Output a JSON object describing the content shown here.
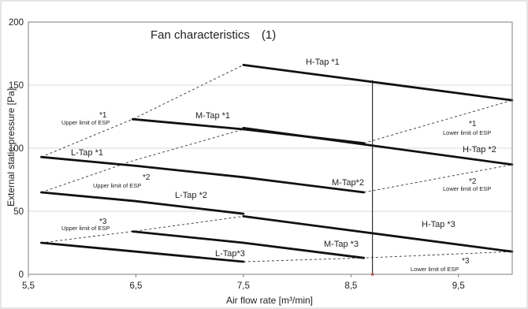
{
  "chart_data": {
    "type": "line",
    "title": "Fan characteristics　(1)",
    "xlabel": "Air flow rate [m³/min]",
    "ylabel": "External static pressure [Pa]",
    "xlim": [
      5.5,
      10.0
    ],
    "ylim": [
      0,
      200
    ],
    "x_ticks": [
      "5,5",
      "6,5",
      "7,5",
      "8,5",
      "9,5"
    ],
    "x_tick_values": [
      5.5,
      6.5,
      7.5,
      8.5,
      9.5
    ],
    "y_ticks": [
      "0",
      "50",
      "100",
      "150",
      "200"
    ],
    "y_tick_values": [
      0,
      50,
      100,
      150,
      200
    ],
    "grid": "horizontal",
    "series": [
      {
        "name": "H-Tap *1",
        "x": [
          7.5,
          10.0
        ],
        "y": [
          166,
          138
        ]
      },
      {
        "name": "M-Tap *1",
        "x": [
          6.47,
          7.5,
          8.62
        ],
        "y": [
          123,
          115,
          104
        ]
      },
      {
        "name": "L-Tap *1",
        "x": [
          5.62,
          6.5,
          7.5
        ],
        "y": [
          93,
          86,
          77
        ]
      },
      {
        "name": "H-Tap *2",
        "x": [
          7.5,
          10.0
        ],
        "y": [
          116,
          87
        ]
      },
      {
        "name": "M-Tap*2",
        "x": [
          7.5,
          8.62
        ],
        "y": [
          77,
          65
        ]
      },
      {
        "name": "L-Tap *2",
        "x": [
          5.62,
          6.5,
          7.5
        ],
        "y": [
          65,
          58,
          48
        ]
      },
      {
        "name": "H-Tap *3",
        "x": [
          7.5,
          10.0
        ],
        "y": [
          46,
          18
        ]
      },
      {
        "name": "M-Tap *3",
        "x": [
          6.47,
          7.5,
          8.62
        ],
        "y": [
          34,
          25,
          13
        ]
      },
      {
        "name": "L-Tap*3",
        "x": [
          5.62,
          6.5,
          7.5
        ],
        "y": [
          25,
          18,
          10
        ]
      }
    ],
    "esp_limits": [
      {
        "x": [
          5.62,
          6.47,
          7.5
        ],
        "y": [
          93,
          123,
          166
        ]
      },
      {
        "x": [
          8.62,
          10.0
        ],
        "y": [
          104,
          138
        ]
      },
      {
        "x": [
          5.62,
          6.47,
          7.5
        ],
        "y": [
          65,
          90,
          115
        ]
      },
      {
        "x": [
          8.62,
          10.0
        ],
        "y": [
          65,
          87
        ]
      },
      {
        "x": [
          5.62,
          6.47,
          7.5
        ],
        "y": [
          25,
          34,
          46
        ]
      },
      {
        "x": [
          7.5,
          8.62,
          10.0
        ],
        "y": [
          10,
          13,
          18
        ]
      }
    ],
    "vertical_marker": {
      "x": 8.7,
      "y": [
        0,
        154
      ]
    },
    "annotations": [
      {
        "mark": "*1",
        "text": "Upper limit of ESP",
        "x": 6.0,
        "y": 122
      },
      {
        "mark": "*1",
        "text": "Lower limit of ESP",
        "x": 9.2,
        "y": 112
      },
      {
        "mark": "*2",
        "text": "Upper limit of ESP",
        "x": 6.25,
        "y": 72
      },
      {
        "mark": "*2",
        "text": "Lower limit of ESP",
        "x": 9.2,
        "y": 70
      },
      {
        "mark": "*3",
        "text": "Upper limit of ESP",
        "x": 6.0,
        "y": 37
      },
      {
        "mark": "*3",
        "text": "Lower limit of ESP",
        "x": 9.15,
        "y": 3
      }
    ]
  }
}
